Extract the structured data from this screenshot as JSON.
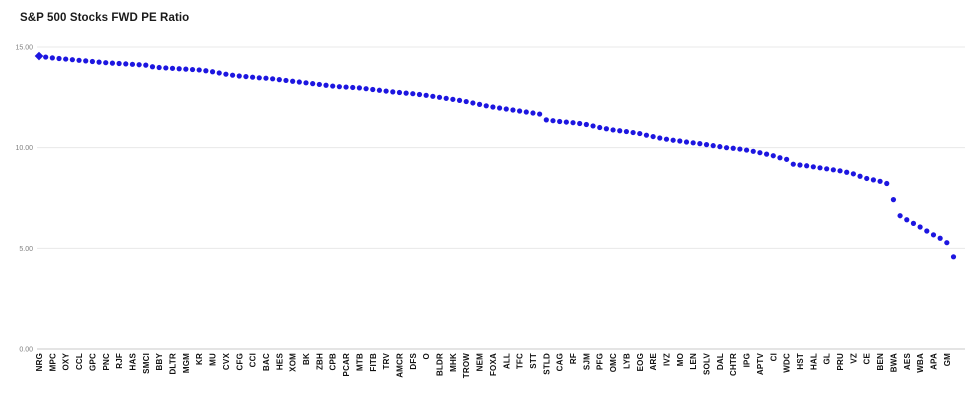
{
  "colors": {
    "dot": "#1d16e0",
    "gridline": "#e8e8e8",
    "zero_line": "#c9c9c9",
    "y_tick_label": "#808080",
    "x_tick_label": "#111111",
    "title": "#1a1a1a",
    "background": "#ffffff"
  },
  "chart_data": {
    "type": "scatter",
    "title": "S&P 500 Stocks FWD PE Ratio",
    "xlabel": "",
    "ylabel": "",
    "ylim": [
      0,
      15
    ],
    "grid": true,
    "legend_position": "none",
    "marker": "circle",
    "first_point_marker": "diamond",
    "label_every": 2,
    "y_ticks": [
      {
        "value": 15,
        "label": "15.00"
      },
      {
        "value": 10,
        "label": "10.00"
      },
      {
        "value": 5,
        "label": "5.00"
      },
      {
        "value": 0,
        "label": "0.00"
      }
    ],
    "x_labels": [
      "NRG",
      "MPC",
      "OXY",
      "CCL",
      "GPC",
      "PNC",
      "RJF",
      "HAS",
      "SMCI",
      "BBY",
      "DLTR",
      "MGM",
      "KR",
      "MU",
      "CVX",
      "CFG",
      "CCI",
      "BAC",
      "HES",
      "XOM",
      "BK",
      "ZBH",
      "CPB",
      "PCAR",
      "MTB",
      "FITB",
      "TRV",
      "AMCR",
      "DFS",
      "O",
      "BLDR",
      "MHK",
      "TROW",
      "NEM",
      "FOXA",
      "ALL",
      "TFC",
      "STT",
      "STLD",
      "CAG",
      "RF",
      "SJM",
      "PFG",
      "OMC",
      "LYB",
      "EOG",
      "ARE",
      "IVZ",
      "MO",
      "LEN",
      "SOLV",
      "DAL",
      "CHTR",
      "IPG",
      "APTV",
      "CI",
      "WDC",
      "HST",
      "HAL",
      "GL",
      "PRU",
      "VZ",
      "CE",
      "BEN",
      "BWA",
      "AES",
      "WBA",
      "APA",
      "GM"
    ],
    "series": [
      {
        "name": "FWD PE Ratio",
        "values": [
          14.55,
          14.5,
          14.46,
          14.43,
          14.4,
          14.37,
          14.34,
          14.31,
          14.28,
          14.25,
          14.22,
          14.2,
          14.18,
          14.16,
          14.14,
          14.12,
          14.1,
          14.02,
          13.98,
          13.96,
          13.94,
          13.92,
          13.9,
          13.88,
          13.86,
          13.82,
          13.77,
          13.71,
          13.65,
          13.6,
          13.56,
          13.53,
          13.5,
          13.47,
          13.45,
          13.42,
          13.38,
          13.34,
          13.3,
          13.26,
          13.22,
          13.18,
          13.14,
          13.1,
          13.06,
          13.03,
          13.01,
          12.99,
          12.97,
          12.93,
          12.89,
          12.85,
          12.81,
          12.77,
          12.74,
          12.71,
          12.68,
          12.64,
          12.6,
          12.55,
          12.5,
          12.45,
          12.4,
          12.35,
          12.29,
          12.22,
          12.15,
          12.08,
          12.02,
          11.97,
          11.92,
          11.87,
          11.82,
          11.77,
          11.72,
          11.67,
          11.38,
          11.34,
          11.3,
          11.27,
          11.24,
          11.2,
          11.15,
          11.08,
          11.0,
          10.94,
          10.88,
          10.84,
          10.8,
          10.75,
          10.7,
          10.62,
          10.55,
          10.48,
          10.42,
          10.37,
          10.33,
          10.28,
          10.24,
          10.2,
          10.15,
          10.1,
          10.05,
          10.0,
          9.97,
          9.93,
          9.88,
          9.82,
          9.75,
          9.68,
          9.6,
          9.5,
          9.42,
          9.18,
          9.14,
          9.1,
          9.05,
          9.0,
          8.95,
          8.9,
          8.85,
          8.78,
          8.7,
          8.58,
          8.47,
          8.4,
          8.33,
          8.22,
          7.42,
          6.62,
          6.42,
          6.24,
          6.06,
          5.86,
          5.67,
          5.5,
          5.28,
          4.58
        ]
      }
    ]
  }
}
